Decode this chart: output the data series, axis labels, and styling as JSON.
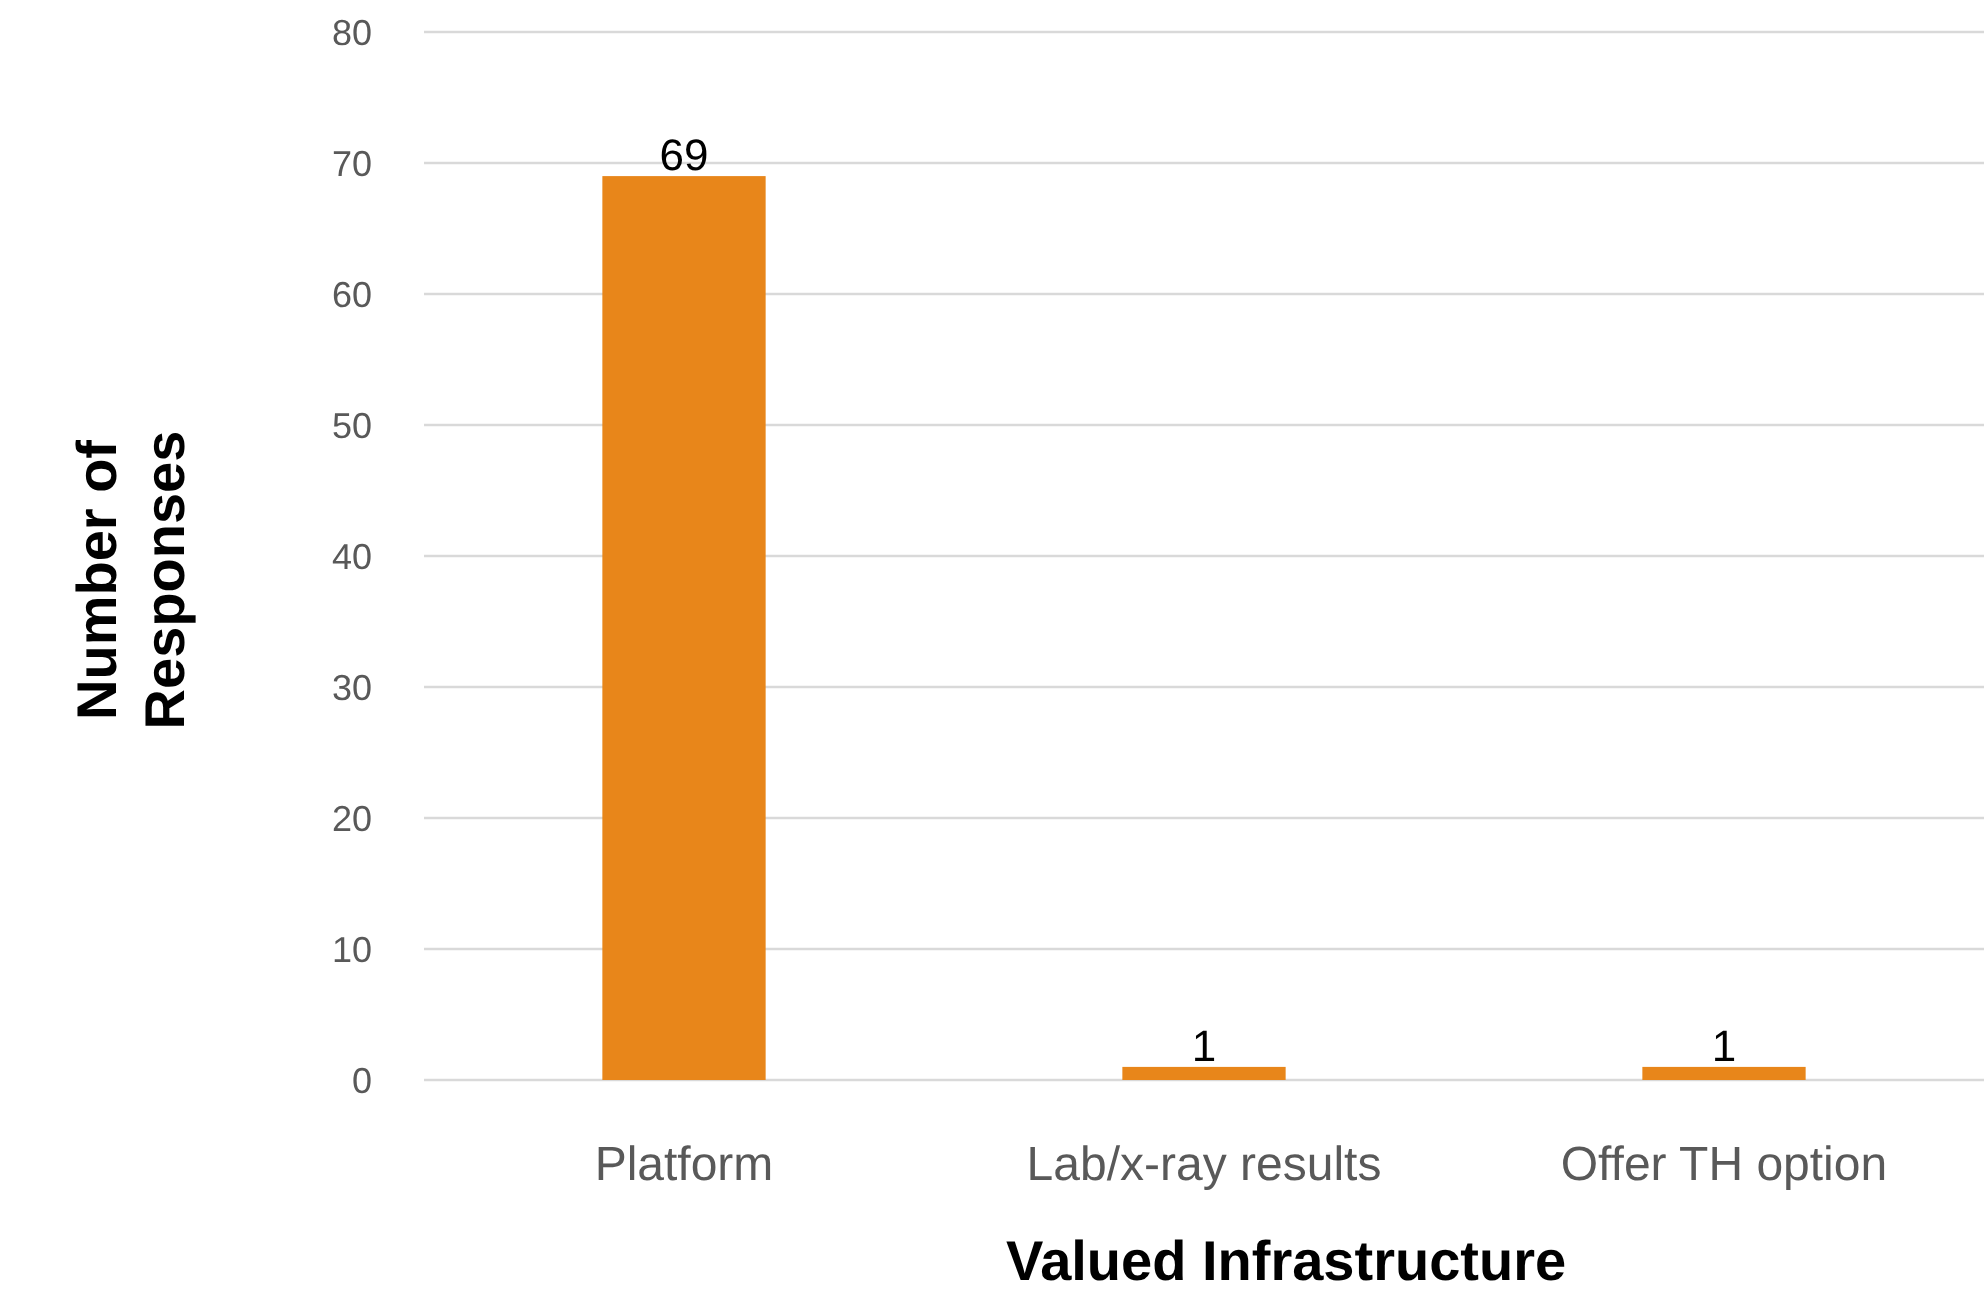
{
  "chart_data": {
    "type": "bar",
    "xlabel": "Valued Infrastructure",
    "ylabel": "Number of Responses",
    "categories": [
      "Platform",
      "Lab/x-ray results",
      "Offer TH option"
    ],
    "values": [
      69,
      1,
      1
    ],
    "color": "#e8861a",
    "ylim": [
      0,
      80
    ],
    "yticks": [
      0,
      10,
      20,
      30,
      40,
      50,
      60,
      70,
      80
    ],
    "grid": "y",
    "data_labels": true
  }
}
